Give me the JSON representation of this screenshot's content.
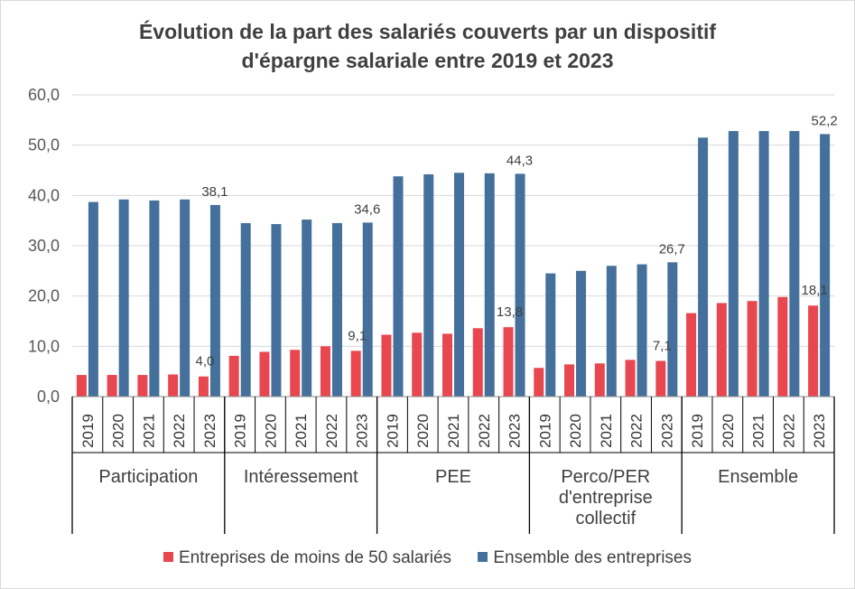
{
  "chart_data": {
    "type": "bar",
    "title": "Évolution de la part des salariés couverts par un dispositif d'épargne salariale entre 2019 et 2023",
    "title_lines": [
      "Évolution de la part des salariés couverts par un dispositif",
      "d'épargne salariale entre 2019 et 2023"
    ],
    "ylim": [
      0,
      60
    ],
    "yticks": [
      "0,0",
      "10,0",
      "20,0",
      "30,0",
      "40,0",
      "50,0",
      "60,0"
    ],
    "grid": true,
    "legend_position": "bottom",
    "groups": [
      {
        "label": "Participation",
        "label_lines": [
          "Participation"
        ]
      },
      {
        "label": "Intéressement",
        "label_lines": [
          "Intéressement"
        ]
      },
      {
        "label": "PEE",
        "label_lines": [
          "PEE"
        ]
      },
      {
        "label": "Perco/PER d'entreprise collectif",
        "label_lines": [
          "Perco/PER",
          "d'entreprise",
          "collectif"
        ]
      },
      {
        "label": "Ensemble",
        "label_lines": [
          "Ensemble"
        ]
      }
    ],
    "years": [
      "2019",
      "2020",
      "2021",
      "2022",
      "2023"
    ],
    "series": [
      {
        "name": "Entreprises de moins de 50 salariés",
        "color": "#e8474f",
        "values": [
          [
            4.3,
            4.3,
            4.3,
            4.4,
            4.0
          ],
          [
            8.1,
            8.9,
            9.3,
            10.0,
            9.1
          ],
          [
            12.3,
            12.7,
            12.5,
            13.6,
            13.8
          ],
          [
            5.7,
            6.4,
            6.6,
            7.3,
            7.1
          ],
          [
            16.6,
            18.6,
            19.0,
            19.8,
            18.1
          ]
        ],
        "data_labels": [
          "4,0",
          "9,1",
          "13,8",
          "7,1",
          "18,1"
        ]
      },
      {
        "name": "Ensemble des entreprises",
        "color": "#44709b",
        "values": [
          [
            38.7,
            39.2,
            39.0,
            39.2,
            38.1
          ],
          [
            34.5,
            34.3,
            35.2,
            34.5,
            34.6
          ],
          [
            43.8,
            44.2,
            44.5,
            44.4,
            44.3
          ],
          [
            24.5,
            25.0,
            26.0,
            26.3,
            26.7
          ],
          [
            51.5,
            52.8,
            52.8,
            52.8,
            52.2
          ]
        ],
        "data_labels": [
          "38,1",
          "34,6",
          "44,3",
          "26,7",
          "52,2"
        ]
      }
    ]
  }
}
